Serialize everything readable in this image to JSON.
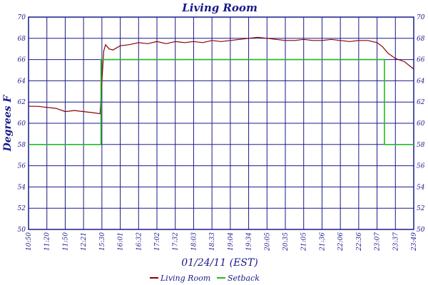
{
  "chart_data": {
    "type": "line",
    "title": "Living Room",
    "xlabel": "01/24/11 (EST)",
    "ylabel": "Degrees F",
    "ylim": [
      50,
      70
    ],
    "y_ticks": [
      50,
      52,
      54,
      56,
      58,
      60,
      62,
      64,
      66,
      68,
      70
    ],
    "x_tick_labels": [
      "10:50",
      "11:20",
      "11:50",
      "12:21",
      "15:30",
      "16:01",
      "16:32",
      "17:02",
      "17:32",
      "18:03",
      "18:33",
      "19:04",
      "19:34",
      "20:05",
      "20:35",
      "21:05",
      "21:36",
      "22:06",
      "22:36",
      "23:07",
      "23:37",
      "23:49"
    ],
    "grid": true,
    "legend_position": "bottom",
    "series": [
      {
        "name": "Living Room",
        "color": "#8b0000",
        "x_index": [
          0,
          0.5,
          1,
          1.5,
          2,
          2.5,
          3,
          3.5,
          3.9,
          4.0,
          4.1,
          4.2,
          4.4,
          4.6,
          5,
          5.5,
          6,
          6.5,
          7,
          7.5,
          8,
          8.5,
          9,
          9.5,
          10,
          10.5,
          11,
          11.5,
          12,
          12.5,
          13,
          13.5,
          14,
          14.5,
          15,
          15.5,
          16,
          16.5,
          17,
          17.5,
          18,
          18.5,
          19,
          19.3,
          19.6,
          20,
          20.5,
          21
        ],
        "values": [
          61.6,
          61.6,
          61.5,
          61.4,
          61.1,
          61.2,
          61.1,
          61.0,
          60.9,
          64.0,
          66.8,
          67.4,
          67.0,
          66.9,
          67.3,
          67.4,
          67.6,
          67.5,
          67.7,
          67.5,
          67.7,
          67.6,
          67.7,
          67.6,
          67.8,
          67.7,
          67.8,
          67.9,
          68.0,
          68.1,
          68.0,
          67.9,
          67.8,
          67.8,
          67.9,
          67.8,
          67.8,
          67.9,
          67.8,
          67.7,
          67.8,
          67.8,
          67.6,
          67.2,
          66.6,
          66.1,
          65.8,
          65.1
        ]
      },
      {
        "name": "Setback",
        "color": "#22bb22",
        "x_index": [
          0,
          3.95,
          3.95,
          19.4,
          19.4,
          21
        ],
        "values": [
          58,
          58,
          66,
          66,
          58,
          58
        ]
      }
    ]
  }
}
